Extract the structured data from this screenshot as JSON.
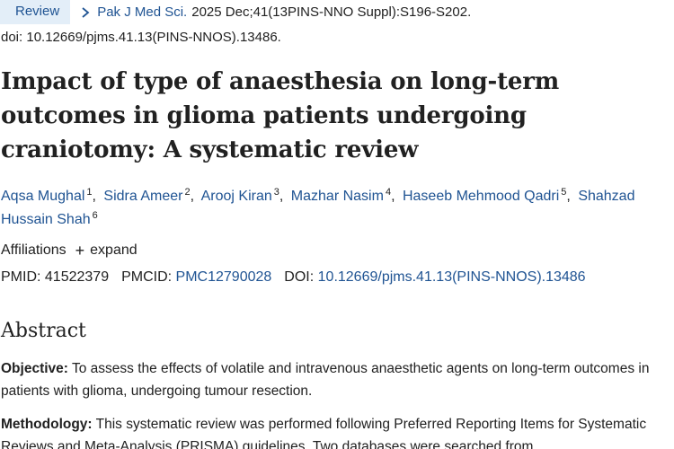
{
  "citation": {
    "badge": "Review",
    "journal": "Pak J Med Sci.",
    "details": "2025 Dec;41(13PINS-NNO Suppl):S196-S202.",
    "doi_line": "doi: 10.12669/pjms.41.13(PINS-NNOS).13486."
  },
  "title": "Impact of type of anaesthesia on long-term outcomes in glioma patients undergoing craniotomy: A systematic review",
  "authors": [
    {
      "name": "Aqsa Mughal",
      "aff": "1",
      "sep": ","
    },
    {
      "name": "Sidra Ameer",
      "aff": "2",
      "sep": ","
    },
    {
      "name": "Arooj Kiran",
      "aff": "3",
      "sep": ","
    },
    {
      "name": "Mazhar Nasim",
      "aff": "4",
      "sep": ","
    },
    {
      "name": "Haseeb Mehmood Qadri",
      "aff": "5",
      "sep": ","
    },
    {
      "name": "Shahzad Hussain Shah",
      "aff": "6",
      "sep": ""
    }
  ],
  "affiliations": {
    "label": "Affiliations",
    "expand_icon": "plus-icon",
    "expand_label": "expand"
  },
  "identifiers": {
    "pmid_label": "PMID:",
    "pmid": "41522379",
    "pmcid_label": "PMCID:",
    "pmcid": "PMC12790028",
    "doi_label": "DOI:",
    "doi": "10.12669/pjms.41.13(PINS-NNOS).13486"
  },
  "abstract": {
    "heading": "Abstract",
    "objective_label": "Objective:",
    "objective_text": " To assess the effects of volatile and intravenous anaesthetic agents on long-term outcomes in patients with glioma, undergoing tumour resection.",
    "methodology_label": "Methodology:",
    "methodology_text": " This systematic review was performed following Preferred Reporting Items for Systematic Reviews and Meta-Analysis (PRISMA) guidelines. Two databases were searched from"
  },
  "colors": {
    "link": "#205493",
    "badge_bg": "#e3eef8",
    "text": "#212121"
  }
}
